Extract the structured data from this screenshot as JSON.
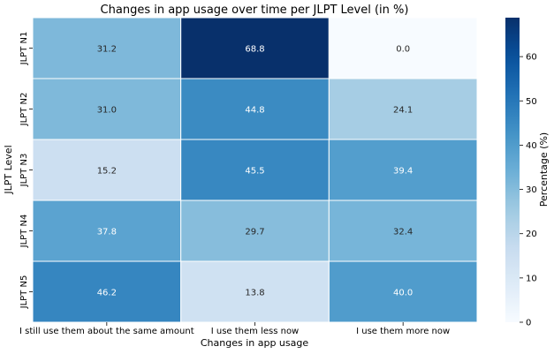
{
  "chart_data": {
    "type": "heatmap",
    "title": "Changes in app usage over time per JLPT Level (in %)",
    "xlabel": "Changes in app usage",
    "ylabel": "JLPT Level",
    "x_categories": [
      "I still use them about the same amount",
      "I use them less now",
      "I use them more now"
    ],
    "y_categories": [
      "JLPT N1",
      "JLPT N2",
      "JLPT N3",
      "JLPT N4",
      "JLPT N5"
    ],
    "values": [
      [
        31.2,
        68.8,
        0.0
      ],
      [
        31.0,
        44.8,
        24.1
      ],
      [
        15.2,
        45.5,
        39.4
      ],
      [
        37.8,
        29.7,
        32.4
      ],
      [
        46.2,
        13.8,
        40.0
      ]
    ],
    "value_labels": [
      [
        "31.2",
        "68.8",
        "0.0"
      ],
      [
        "31.0",
        "44.8",
        "24.1"
      ],
      [
        "15.2",
        "45.5",
        "39.4"
      ],
      [
        "37.8",
        "29.7",
        "32.4"
      ],
      [
        "46.2",
        "13.8",
        "40.0"
      ]
    ],
    "colorbar": {
      "label": "Percentage (%)",
      "range": [
        0,
        68.8
      ],
      "ticks": [
        0,
        10,
        20,
        30,
        40,
        50,
        60
      ],
      "tick_labels": [
        "0",
        "10",
        "20",
        "30",
        "40",
        "50",
        "60"
      ],
      "colormap": "Blues"
    }
  }
}
